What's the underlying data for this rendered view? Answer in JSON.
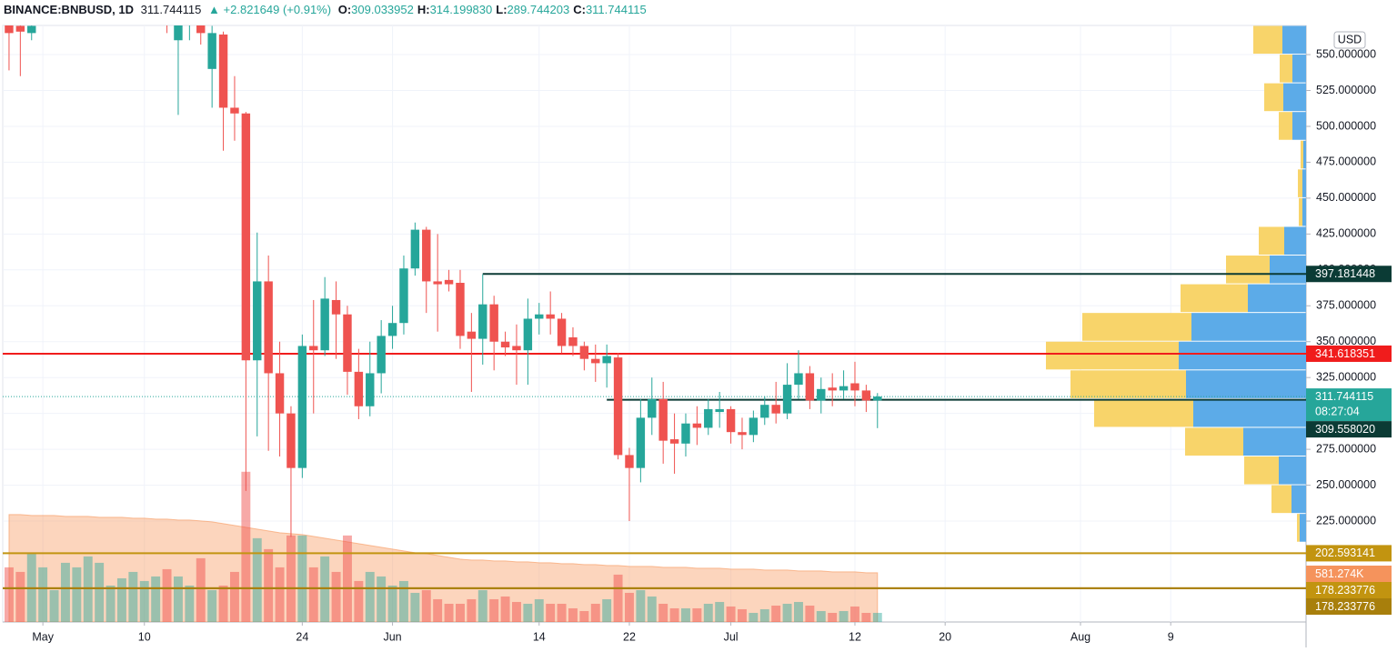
{
  "header": {
    "symbol": "BINANCE:BNBUSD, 1D",
    "last": "311.744115",
    "arrow": "▲",
    "change": "+2.821649 (+0.91%)",
    "ohlc": [
      {
        "key": "O:",
        "value": "309.033952"
      },
      {
        "key": "H:",
        "value": "314.199830"
      },
      {
        "key": "L:",
        "value": "289.744203"
      },
      {
        "key": "C:",
        "value": "311.744115"
      }
    ]
  },
  "chart_data": {
    "type": "candlestick",
    "currency": "USD",
    "xlim": [
      -0.56,
      115
    ],
    "xticks": [
      {
        "value": 3,
        "label": "May"
      },
      {
        "value": 12,
        "label": "10"
      },
      {
        "value": 26,
        "label": "24"
      },
      {
        "value": 34,
        "label": "Jun"
      },
      {
        "value": 47,
        "label": "14"
      },
      {
        "value": 55,
        "label": "22"
      },
      {
        "value": 64,
        "label": "Jul"
      },
      {
        "value": 75,
        "label": "12"
      },
      {
        "value": 83,
        "label": "20"
      },
      {
        "value": 95,
        "label": "Aug"
      },
      {
        "value": 103,
        "label": "9"
      }
    ],
    "ylim": [
      154.7,
      570.3
    ],
    "yticks": [
      {
        "value": 225,
        "label": "225.000000"
      },
      {
        "value": 250,
        "label": "250.000000"
      },
      {
        "value": 275,
        "label": "275.000000"
      },
      {
        "value": 300,
        "label": "300.000000"
      },
      {
        "value": 325,
        "label": "325.000000"
      },
      {
        "value": 350,
        "label": "350.000000"
      },
      {
        "value": 375,
        "label": "375.000000"
      },
      {
        "value": 400,
        "label": "400.000000"
      },
      {
        "value": 425,
        "label": "425.000000"
      },
      {
        "value": 450,
        "label": "450.000000"
      },
      {
        "value": 475,
        "label": "475.000000"
      },
      {
        "value": 500,
        "label": "500.000000"
      },
      {
        "value": 525,
        "label": "525.000000"
      },
      {
        "value": 550,
        "label": "550.000000"
      }
    ],
    "grid": true,
    "up_color": "#26a69a",
    "down_color": "#ef5350",
    "open": [
      575,
      570,
      565,
      null,
      null,
      null,
      null,
      null,
      null,
      null,
      null,
      null,
      null,
      null,
      620,
      560,
      600,
      580,
      540,
      564,
      513,
      509,
      337,
      392,
      328,
      300,
      262,
      347,
      344,
      379,
      369,
      329,
      305,
      328,
      354,
      363,
      401,
      428,
      392,
      393,
      391,
      357,
      352,
      376,
      350,
      347,
      344,
      366,
      369,
      366,
      353,
      347,
      338,
      335,
      339,
      271,
      262,
      297,
      310,
      282,
      279,
      293,
      290,
      301,
      303,
      287,
      285,
      297,
      306,
      300,
      320,
      328,
      309,
      318,
      316,
      321,
      316,
      309.033952
    ],
    "high": [
      580,
      580,
      590,
      null,
      null,
      null,
      null,
      null,
      null,
      null,
      null,
      null,
      null,
      null,
      640,
      600,
      625,
      590,
      570,
      566,
      535,
      510,
      426,
      410,
      350,
      305,
      355,
      379,
      395,
      392,
      375,
      345,
      350,
      365,
      375,
      410,
      433,
      430,
      425,
      400,
      400,
      370,
      397,
      382,
      357,
      362,
      380,
      377,
      385,
      370,
      360,
      350,
      348,
      348,
      342,
      276,
      310,
      325,
      322,
      300,
      300,
      305,
      310,
      315,
      305,
      297,
      302,
      312,
      322,
      335,
      344,
      333,
      325,
      328,
      330,
      336,
      320,
      314.19983
    ],
    "low": [
      539,
      535,
      560,
      null,
      null,
      null,
      null,
      null,
      null,
      null,
      null,
      null,
      null,
      null,
      565,
      508,
      560,
      557,
      513,
      483,
      490,
      246,
      284,
      274,
      270,
      214,
      255,
      300,
      340,
      338,
      313,
      296,
      298,
      314,
      345,
      355,
      396,
      370,
      357,
      385,
      345,
      315,
      334,
      330,
      340,
      320,
      320,
      355,
      355,
      342,
      340,
      330,
      322,
      318,
      268,
      225,
      252,
      285,
      265,
      258,
      270,
      278,
      285,
      290,
      279,
      275,
      280,
      292,
      293,
      296,
      310,
      303,
      300,
      305,
      310,
      305,
      301,
      289.744203
    ],
    "close": [
      565,
      566,
      570,
      null,
      null,
      null,
      null,
      null,
      null,
      null,
      null,
      null,
      null,
      null,
      580,
      590,
      610,
      565,
      565,
      513,
      509,
      337,
      392,
      328,
      300,
      262,
      347,
      344,
      380,
      369,
      329,
      305,
      328,
      354,
      363,
      401,
      428,
      392,
      390,
      390,
      354,
      352,
      376,
      350,
      346,
      344,
      366,
      369,
      366,
      347,
      347,
      338,
      335,
      340,
      271,
      262,
      297,
      310,
      281,
      279,
      293,
      290,
      303,
      303,
      287,
      285,
      297,
      306,
      300,
      320,
      328,
      309,
      317,
      316,
      319,
      316,
      309,
      311.744115
    ],
    "countdown": "08:27:04",
    "volume_ylim": [
      0,
      38000000
    ],
    "volume": [
      3480000,
      3190000,
      4408000,
      3480000,
      2030000,
      3770000,
      3480000,
      4176000,
      3770000,
      2320000,
      2784000,
      3190000,
      2610000,
      2900000,
      3364000,
      2900000,
      2320000,
      4060000,
      2030000,
      2320000,
      3190000,
      9570000,
      5336000,
      4640000,
      3480000,
      5510000,
      5510000,
      3480000,
      4176000,
      3190000,
      5510000,
      2610000,
      3190000,
      2900000,
      2320000,
      2610000,
      1856000,
      2030000,
      1450000,
      1160000,
      1160000,
      1450000,
      2030000,
      1450000,
      1624000,
      1276000,
      1160000,
      1450000,
      1160000,
      1160000,
      870000,
      696000,
      1160000,
      1450000,
      3016000,
      1856000,
      2030000,
      1624000,
      1160000,
      870000,
      870000,
      870000,
      1160000,
      1276000,
      986000,
      812000,
      580000,
      812000,
      1044000,
      1160000,
      1276000,
      1044000,
      696000,
      580000,
      696000,
      986000,
      580000,
      581274
    ],
    "volume_label": "581.274K",
    "volume_ma": [
      6844000,
      6844000,
      6786000,
      6786000,
      6786000,
      6728000,
      6728000,
      6728000,
      6670000,
      6670000,
      6670000,
      6612000,
      6612000,
      6554000,
      6554000,
      6496000,
      6496000,
      6438000,
      6380000,
      6264000,
      6148000,
      6032000,
      5916000,
      5800000,
      5684000,
      5626000,
      5568000,
      5452000,
      5336000,
      5220000,
      5104000,
      4988000,
      4872000,
      4756000,
      4640000,
      4524000,
      4408000,
      4350000,
      4234000,
      4118000,
      4002000,
      3944000,
      3944000,
      3886000,
      3886000,
      3828000,
      3828000,
      3770000,
      3770000,
      3712000,
      3712000,
      3654000,
      3654000,
      3596000,
      3596000,
      3538000,
      3538000,
      3538000,
      3480000,
      3480000,
      3480000,
      3422000,
      3422000,
      3422000,
      3364000,
      3364000,
      3364000,
      3306000,
      3306000,
      3306000,
      3248000,
      3248000,
      3248000,
      3190000,
      3190000,
      3190000,
      3132000,
      3132000
    ],
    "levels": [
      {
        "value": 397.181448,
        "color": "#0b3b35",
        "start": 42
      },
      {
        "value": 341.618351,
        "color": "#f01c1c"
      },
      {
        "value": 309.55802,
        "label": "309.558020",
        "color": "#0b3b35",
        "start": 53
      },
      {
        "value": 202.593141,
        "color": "#c29410"
      },
      {
        "value": 178.233776,
        "color": "#c29410"
      },
      {
        "value": 178.233776,
        "color": "#a87f0c"
      }
    ],
    "profile": {
      "bins": [
        570,
        550,
        530,
        510,
        490,
        470,
        450,
        430,
        410,
        390,
        370,
        350,
        330,
        310,
        290,
        270,
        250,
        230,
        210
      ],
      "xlim": [
        0,
        1433
      ],
      "up": [
        26,
        15,
        25,
        15,
        3,
        4,
        4,
        24,
        40,
        64,
        126,
        140,
        132,
        124,
        69,
        30,
        16,
        7
      ],
      "down": [
        32,
        14,
        21,
        15,
        3,
        5,
        4,
        28,
        48,
        74,
        120,
        146,
        127,
        109,
        64,
        38,
        22,
        3
      ],
      "up_color": "#5cabe8",
      "down_color": "#f8d46a"
    }
  }
}
